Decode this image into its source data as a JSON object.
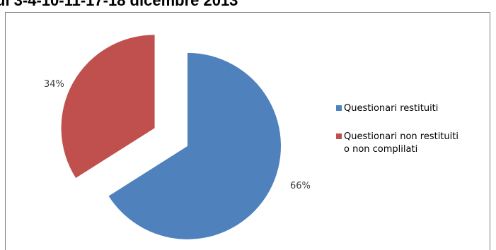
{
  "page": {
    "heading": "ul 3-4-10-11-17-18 dicembre 2013"
  },
  "colors": {
    "series_blue": "#4f81bd",
    "series_red": "#c0504d",
    "frame": "#7f7f7f"
  },
  "chart_data": {
    "type": "pie",
    "title": "",
    "categories": [
      "Questionari restituiti",
      "Questionari non restituiti o non complilati"
    ],
    "values": [
      66,
      34
    ],
    "value_labels": [
      "66%",
      "34%"
    ],
    "exploded": true,
    "legend_position": "right",
    "legend": [
      {
        "lines": [
          "Questionari restituiti"
        ]
      },
      {
        "lines": [
          "Questionari non restituiti",
          "o non complilati"
        ]
      }
    ]
  }
}
